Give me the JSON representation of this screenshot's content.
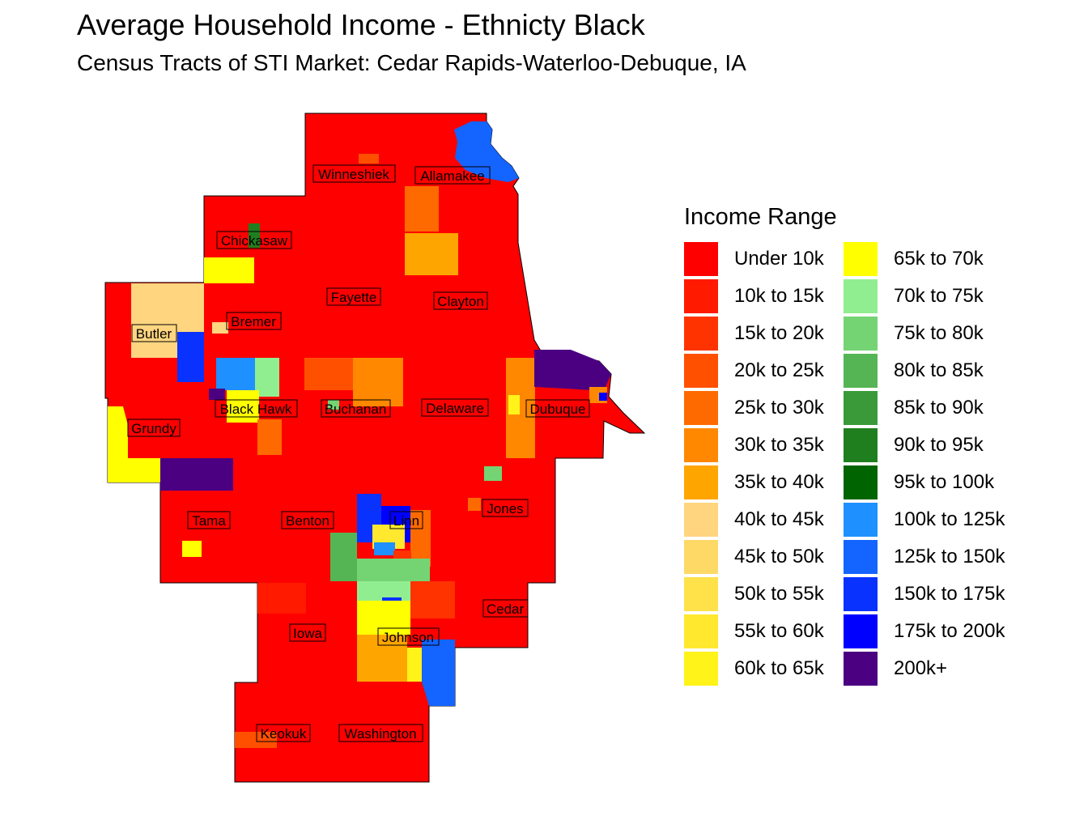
{
  "title": "Average Household Income - Ethnicty Black",
  "subtitle": "Census Tracts of STI Market: Cedar Rapids-Waterloo-Debuque, IA",
  "legend": {
    "title": "Income Range",
    "items": [
      {
        "label": "Under 10k",
        "color": "#ff0000"
      },
      {
        "label": "10k to 15k",
        "color": "#ff1a00"
      },
      {
        "label": "15k to 20k",
        "color": "#ff3300"
      },
      {
        "label": "20k to 25k",
        "color": "#ff5000"
      },
      {
        "label": "25k to 30k",
        "color": "#ff6a00"
      },
      {
        "label": "30k to 35k",
        "color": "#ff8800"
      },
      {
        "label": "35k to 40k",
        "color": "#ffa500"
      },
      {
        "label": "40k to 45k",
        "color": "#ffd580"
      },
      {
        "label": "45k to 50k",
        "color": "#ffd966"
      },
      {
        "label": "50k to 55k",
        "color": "#ffe14a"
      },
      {
        "label": "55k to 60k",
        "color": "#ffe82e"
      },
      {
        "label": "60k to 65k",
        "color": "#fff31a"
      },
      {
        "label": "65k to 70k",
        "color": "#ffff00"
      },
      {
        "label": "70k to 75k",
        "color": "#90ee90"
      },
      {
        "label": "75k to 80k",
        "color": "#74d474"
      },
      {
        "label": "80k to 85k",
        "color": "#55b555"
      },
      {
        "label": "85k to 90k",
        "color": "#3a9a3a"
      },
      {
        "label": "90k to 95k",
        "color": "#1f7f1f"
      },
      {
        "label": "95k to 100k",
        "color": "#006400"
      },
      {
        "label": "100k to 125k",
        "color": "#1e90ff"
      },
      {
        "label": "125k to 150k",
        "color": "#1464ff"
      },
      {
        "label": "150k to 175k",
        "color": "#0a32ff"
      },
      {
        "label": "175k to 200k",
        "color": "#0000ff"
      },
      {
        "label": "200k+",
        "color": "#4b0082"
      }
    ]
  },
  "counties": [
    {
      "name": "Winneshiek"
    },
    {
      "name": "Allamakee"
    },
    {
      "name": "Chickasaw"
    },
    {
      "name": "Fayette"
    },
    {
      "name": "Clayton"
    },
    {
      "name": "Bremer"
    },
    {
      "name": "Butler"
    },
    {
      "name": "Black Hawk"
    },
    {
      "name": "Buchanan"
    },
    {
      "name": "Delaware"
    },
    {
      "name": "Dubuque"
    },
    {
      "name": "Grundy"
    },
    {
      "name": "Tama"
    },
    {
      "name": "Benton"
    },
    {
      "name": "Linn"
    },
    {
      "name": "Jones"
    },
    {
      "name": "Cedar"
    },
    {
      "name": "Iowa"
    },
    {
      "name": "Johnson"
    },
    {
      "name": "Keokuk"
    },
    {
      "name": "Washington"
    }
  ]
}
